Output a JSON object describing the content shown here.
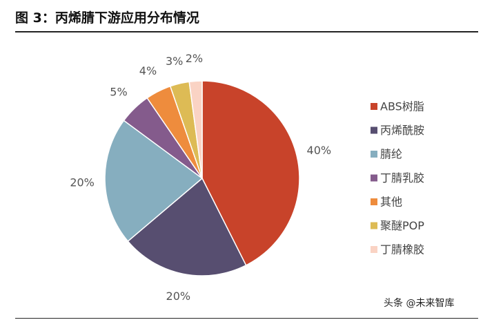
{
  "header": {
    "title": "图 3：丙烯腈下游应用分布情况"
  },
  "watermark": "头条 @未来智库",
  "chart_data": {
    "type": "pie",
    "title": "",
    "legend_position": "right",
    "slices": [
      {
        "name": "ABS树脂",
        "value": 40,
        "label": "40%",
        "color": "#C8432A"
      },
      {
        "name": "丙烯酰胺",
        "value": 20,
        "label": "20%",
        "color": "#574E70"
      },
      {
        "name": "腈纶",
        "value": 20,
        "label": "20%",
        "color": "#86AEBF"
      },
      {
        "name": "丁腈乳胶",
        "value": 5,
        "label": "5%",
        "color": "#845B8C"
      },
      {
        "name": "其他",
        "value": 4,
        "label": "4%",
        "color": "#EE8C3D"
      },
      {
        "name": "聚醚POP",
        "value": 3,
        "label": "3%",
        "color": "#DDBB55"
      },
      {
        "name": "丁腈橡胶",
        "value": 2,
        "label": "2%",
        "color": "#FAD3C4"
      }
    ]
  }
}
